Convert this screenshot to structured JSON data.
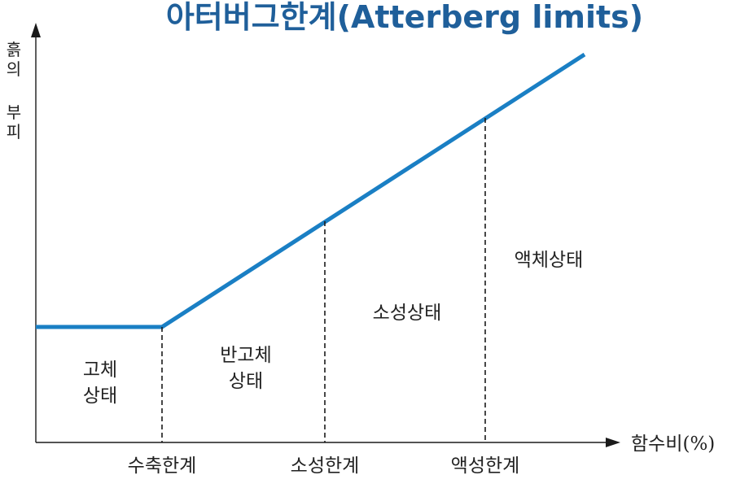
{
  "title": "아터버그한계(Atterberg limits)",
  "y_axis_label": [
    "흙",
    "의",
    "부",
    "피"
  ],
  "x_axis_label": "함수비(%)",
  "limits": [
    "수축한계",
    "소성한계",
    "액성한계"
  ],
  "states": {
    "solid": [
      "고체",
      "상태"
    ],
    "semisolid": [
      "반고체",
      "상태"
    ],
    "plastic": "소성상태",
    "liquid": "액체상태"
  },
  "colors": {
    "title": "#1f5f9a",
    "curve": "#1a7fc4"
  }
}
